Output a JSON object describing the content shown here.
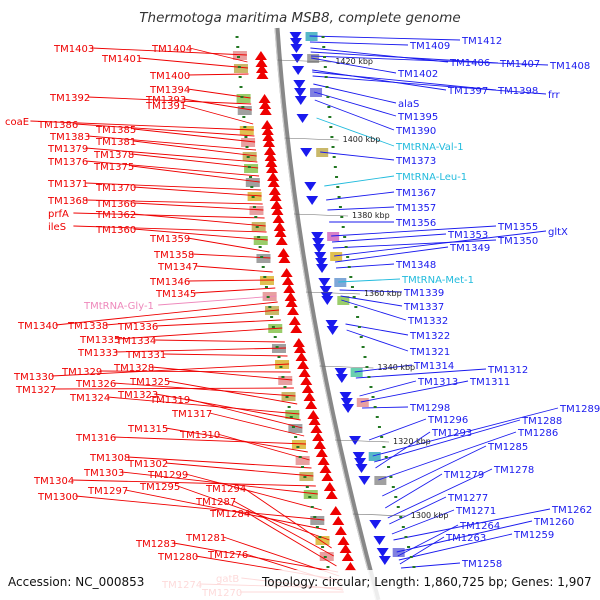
{
  "title": "Thermotoga maritima MSB8, complete genome",
  "footer": {
    "accession": "Accession: NC_000853",
    "topology": "Topology: circular; Length: 1,860,725 bp; Genes: 1,907"
  },
  "colors": {
    "reverse_strand": "#ee0000",
    "forward_strand": "#1a1aee",
    "trna_forward": "#22bbdd",
    "trna_reverse": "#ee88bb",
    "backbone": "#888888",
    "tick": "#227722"
  },
  "ticks": [
    {
      "label": "1420 kbp",
      "value": 1420
    },
    {
      "label": "1400 kbp",
      "value": 1400
    },
    {
      "label": "1380 kbp",
      "value": 1380
    },
    {
      "label": "1360 kbp",
      "value": 1360
    },
    {
      "label": "1340 kbp",
      "value": 1340
    },
    {
      "label": "1320 kbp",
      "value": 1320
    },
    {
      "label": "1300 kbp",
      "value": 1300
    }
  ],
  "reverse_labels": [
    "TM1403",
    "TM1404",
    "TM1401",
    "TM1400",
    "TM1394",
    "TM1392",
    "TM1393",
    "TM1391",
    "coaE",
    "TM1386",
    "TM1385",
    "TM1383",
    "TM1381",
    "TM1379",
    "TM1378",
    "TM1376",
    "TM1375",
    "TM1371",
    "TM1370",
    "TM1368",
    "TM1366",
    "prfA",
    "TM1362",
    "ileS",
    "TM1360",
    "TM1359",
    "TM1358",
    "TM1347",
    "TM1346",
    "TM1345",
    "TMtRNA-Gly-1",
    "TM1340",
    "TM1338",
    "TM1336",
    "TM1335",
    "TM1334",
    "TM1333",
    "TM1331",
    "TM1330",
    "TM1329",
    "TM1328",
    "TM1327",
    "TM1326",
    "TM1325",
    "TM1324",
    "TM1323",
    "TM1319",
    "TM1317",
    "TM1316",
    "TM1315",
    "TM1310",
    "TM1308",
    "TM1302",
    "TM1304",
    "TM1303",
    "TM1299",
    "TM1300",
    "TM1297",
    "TM1295",
    "TM1294",
    "TM1287",
    "TM1284",
    "TM1283",
    "TM1281",
    "TM1280",
    "TM1276",
    "TM1274",
    "gatB",
    "TM1270"
  ],
  "forward_labels": [
    "TM1412",
    "TM1409",
    "TM1406",
    "TM1407",
    "TM1408",
    "TM1402",
    "TM1397",
    "TM1398",
    "frr",
    "alaS",
    "TM1395",
    "TM1390",
    "TMtRNA-Val-1",
    "TM1373",
    "TMtRNA-Leu-1",
    "TM1367",
    "TM1357",
    "TM1356",
    "TM1355",
    "TM1353",
    "TM1350",
    "gltX",
    "TM1349",
    "TM1348",
    "TMtRNA-Met-1",
    "TM1339",
    "TM1337",
    "TM1332",
    "TM1322",
    "TM1321",
    "TM1314",
    "TM1312",
    "TM1313",
    "TM1311",
    "TM1298",
    "TM1296",
    "TM1289",
    "TM1288",
    "TM1293",
    "TM1286",
    "TM1285",
    "TM1279",
    "TM1278",
    "TM1277",
    "TM1271",
    "TM1262",
    "TM1260",
    "TM1264",
    "TM1259",
    "TM1263",
    "TM1258"
  ]
}
